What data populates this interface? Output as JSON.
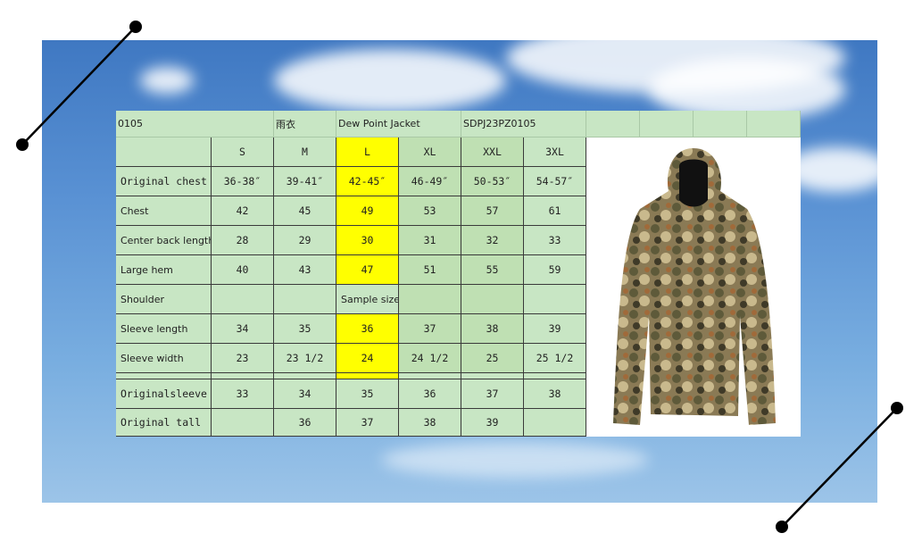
{
  "header": {
    "code": "0105",
    "name_cn": "雨衣",
    "product": "Dew Point Jacket",
    "sku": "SDPJ23PZ0105"
  },
  "table": {
    "sizes": [
      "S",
      "M",
      "L",
      "XL",
      "XXL",
      "3XL"
    ],
    "rows": [
      {
        "label": "Original chest",
        "cells": [
          "36-38″",
          "39-41″",
          "42-45″",
          "46-49″",
          "50-53″",
          "54-57″"
        ]
      },
      {
        "label": "Chest",
        "cells": [
          "42",
          "45",
          "49",
          "53",
          "57",
          "61"
        ]
      },
      {
        "label": "Center back length",
        "cells": [
          "28",
          "29",
          "30",
          "31",
          "32",
          "33"
        ]
      },
      {
        "label": "Large hem",
        "cells": [
          "40",
          "43",
          "47",
          "51",
          "55",
          "59"
        ]
      },
      {
        "label": "Shoulder",
        "cells": [
          null,
          null,
          "Sample size",
          null,
          null,
          null
        ]
      },
      {
        "label": "Sleeve length",
        "cells": [
          "34",
          "35",
          "36",
          "37",
          "38",
          "39"
        ]
      },
      {
        "label": "Sleeve width",
        "cells": [
          "23",
          "23 1/2",
          "24",
          "24 1/2",
          "25",
          "25 1/2"
        ]
      },
      {
        "label": "Originalsleeve",
        "cells": [
          "33",
          "34",
          "35",
          "36",
          "37",
          "38"
        ]
      },
      {
        "label": "Original tall",
        "cells": [
          null,
          "36",
          "37",
          "38",
          "39",
          null
        ]
      }
    ]
  }
}
